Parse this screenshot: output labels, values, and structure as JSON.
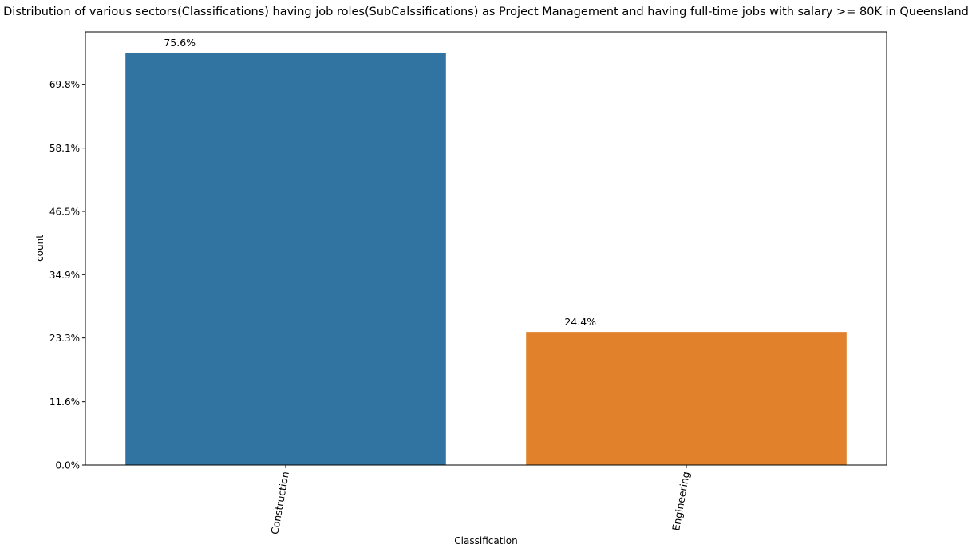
{
  "chart_data": {
    "type": "bar",
    "title": "Distribution of various sectors(Classifications) having job roles(SubCalssifications) as Project Management and having full-time jobs with salary >= 80K in Queensland",
    "xlabel": "Classification",
    "ylabel": "count",
    "categories": [
      "Construction",
      "Engineering"
    ],
    "values": [
      75.6,
      24.4
    ],
    "value_labels": [
      "75.6%",
      "24.4%"
    ],
    "colors": [
      "#3274a1",
      "#e1812c"
    ],
    "yticks": [
      0.0,
      11.6,
      23.3,
      34.9,
      46.5,
      58.1,
      69.8
    ],
    "ytick_labels": [
      "0.0%",
      "11.6%",
      "23.3%",
      "34.9%",
      "46.5%",
      "58.1%",
      "69.8%"
    ],
    "ylim": [
      0,
      79.4
    ],
    "grid": false,
    "legend": "none",
    "xtick_rotation": "vertical"
  }
}
